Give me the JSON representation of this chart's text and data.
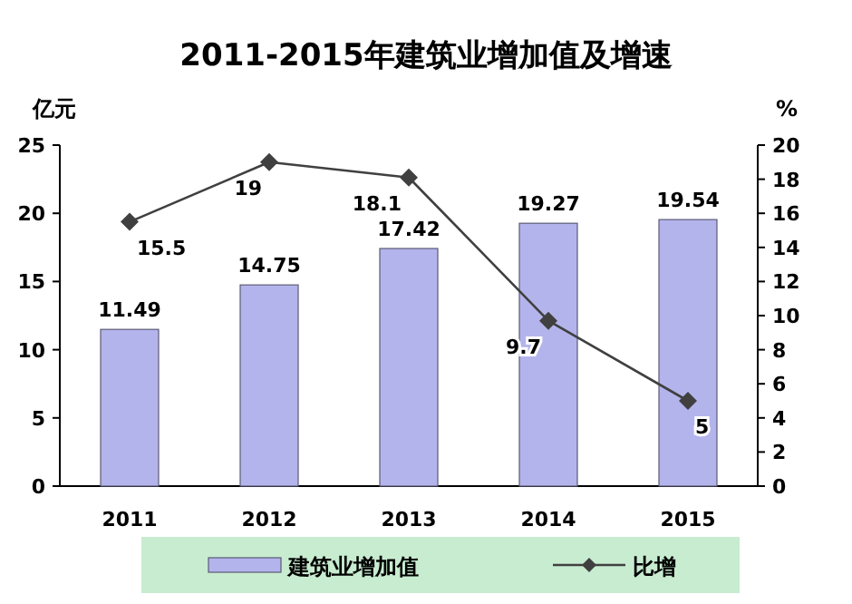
{
  "chart_data": {
    "type": "bar",
    "title": "2011-2015年建筑业增加值及增速",
    "ylabel": "亿元",
    "y2label": "%",
    "categories": [
      "2011",
      "2012",
      "2013",
      "2014",
      "2015"
    ],
    "series": [
      {
        "name": "建筑业增加值",
        "color": "#b4b4ec",
        "values": [
          11.49,
          14.75,
          17.42,
          19.27,
          19.54
        ]
      },
      {
        "name": "比增",
        "type": "line",
        "axis": "y2",
        "color": "#404040",
        "values": [
          15.5,
          19,
          18.1,
          9.7,
          5
        ]
      }
    ],
    "ylim": [
      0,
      25
    ],
    "yticks": [
      0,
      5,
      10,
      15,
      20,
      25
    ],
    "y2lim": [
      0,
      20
    ],
    "y2ticks": [
      0,
      2,
      4,
      6,
      8,
      10,
      12,
      14,
      16,
      18,
      20
    ],
    "data_labels": true,
    "legend": "bottom",
    "marker": "diamond",
    "grid": false
  }
}
